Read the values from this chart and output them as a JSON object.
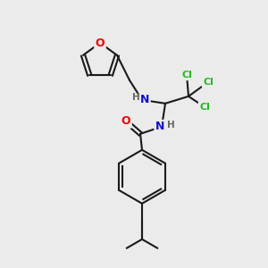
{
  "background_color": "#ebebeb",
  "bond_color": "#1a1a1a",
  "atom_colors": {
    "O": "#ee0000",
    "N": "#1111cc",
    "Cl": "#22bb22",
    "H": "#666666"
  },
  "figsize": [
    3.0,
    3.0
  ],
  "dpi": 100
}
